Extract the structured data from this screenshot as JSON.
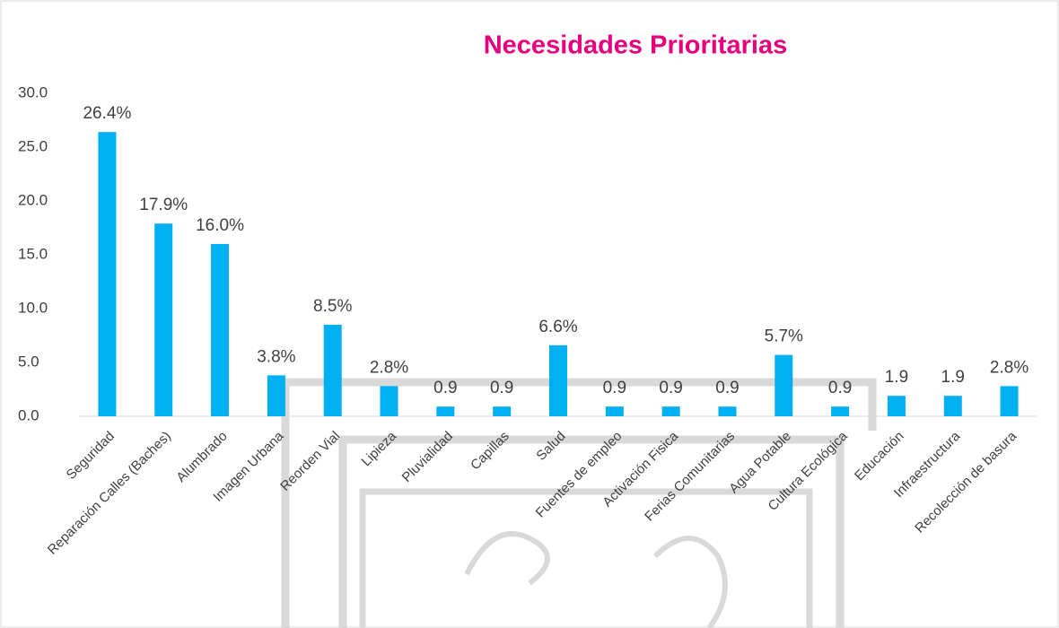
{
  "chart_data": {
    "type": "bar",
    "title": "Necesidades Prioritarias",
    "categories": [
      "Seguridad",
      "Reparación Calles (Baches)",
      "Alumbrado",
      "Imagen Urbana",
      "Reorden Vial",
      "Lipieza",
      "Pluvialidad",
      "Capillas",
      "Salud",
      "Fuentes de empleo",
      "Activación Fisica",
      "Ferias Comunitarias",
      "Agua Potable",
      "Cultura Ecológica",
      "Educación",
      "Infraestructura",
      "Recolección de basura"
    ],
    "values": [
      26.4,
      17.9,
      16.0,
      3.8,
      8.5,
      2.8,
      0.9,
      0.9,
      6.6,
      0.9,
      0.9,
      0.9,
      5.7,
      0.9,
      1.9,
      1.9,
      2.8
    ],
    "value_labels": [
      "26.4%",
      "17.9%",
      "16.0%",
      "3.8%",
      "8.5%",
      "2.8%",
      "0.9",
      "0.9",
      "6.6%",
      "0.9",
      "0.9",
      "0.9",
      "5.7%",
      "0.9",
      "1.9",
      "1.9",
      "2.8%"
    ],
    "color": "#00b0f0",
    "ylim": [
      0,
      30
    ],
    "yticks": [
      {
        "value": 0,
        "label": "0.0"
      },
      {
        "value": 5,
        "label": "5.0"
      },
      {
        "value": 10,
        "label": "10.0"
      },
      {
        "value": 15,
        "label": "15.0"
      },
      {
        "value": 20,
        "label": "20.0"
      },
      {
        "value": 25,
        "label": "25.0"
      },
      {
        "value": 30,
        "label": "30.0"
      }
    ],
    "grid": false
  }
}
